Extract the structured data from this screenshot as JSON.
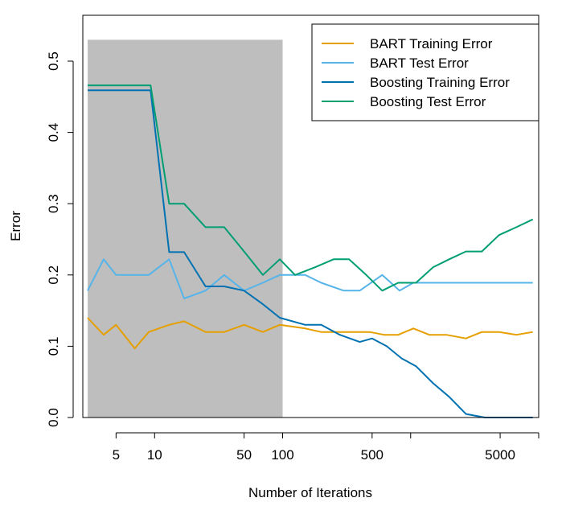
{
  "chart_data": {
    "type": "line",
    "title": "",
    "xlabel": "Number of Iterations",
    "ylabel": "Error",
    "x_scale": "log",
    "xlim": [
      2.75,
      10000
    ],
    "ylim": [
      0,
      0.53
    ],
    "grid": false,
    "legend_position": "top-right",
    "x_ticks": [
      5,
      10,
      50,
      100,
      500,
      5000
    ],
    "x_tick_labels": [
      "5",
      "10",
      "50",
      "100",
      "500",
      "5000"
    ],
    "x_minor_ticks": [
      1000,
      10000
    ],
    "y_ticks": [
      0.0,
      0.1,
      0.2,
      0.3,
      0.4,
      0.5
    ],
    "y_tick_labels": [
      "0.0",
      "0.1",
      "0.2",
      "0.3",
      "0.4",
      "0.5"
    ],
    "shaded_region": {
      "x": [
        3,
        100
      ],
      "y": [
        0,
        0.53
      ],
      "color": "#bebebe"
    },
    "series": [
      {
        "name": "BART Training Error",
        "color": "#e69f00",
        "points": [
          [
            3,
            0.14
          ],
          [
            4,
            0.116
          ],
          [
            5,
            0.13
          ],
          [
            7,
            0.097
          ],
          [
            9,
            0.12
          ],
          [
            13,
            0.13
          ],
          [
            17,
            0.135
          ],
          [
            25,
            0.12
          ],
          [
            35,
            0.12
          ],
          [
            50,
            0.13
          ],
          [
            70,
            0.12
          ],
          [
            95,
            0.13
          ],
          [
            150,
            0.125
          ],
          [
            200,
            0.12
          ],
          [
            300,
            0.12
          ],
          [
            480,
            0.12
          ],
          [
            620,
            0.116
          ],
          [
            800,
            0.116
          ],
          [
            1050,
            0.125
          ],
          [
            1400,
            0.116
          ],
          [
            1900,
            0.116
          ],
          [
            2700,
            0.111
          ],
          [
            3600,
            0.12
          ],
          [
            4900,
            0.12
          ],
          [
            6700,
            0.116
          ],
          [
            9000,
            0.12
          ]
        ]
      },
      {
        "name": "BART Test Error",
        "color": "#56b4e9",
        "points": [
          [
            3,
            0.178
          ],
          [
            4,
            0.222
          ],
          [
            5,
            0.2
          ],
          [
            7,
            0.2
          ],
          [
            9,
            0.2
          ],
          [
            13,
            0.222
          ],
          [
            17,
            0.167
          ],
          [
            25,
            0.178
          ],
          [
            35,
            0.2
          ],
          [
            50,
            0.178
          ],
          [
            70,
            0.189
          ],
          [
            95,
            0.2
          ],
          [
            150,
            0.2
          ],
          [
            200,
            0.189
          ],
          [
            300,
            0.178
          ],
          [
            400,
            0.178
          ],
          [
            600,
            0.2
          ],
          [
            820,
            0.178
          ],
          [
            1050,
            0.189
          ],
          [
            1400,
            0.189
          ],
          [
            2000,
            0.189
          ],
          [
            3000,
            0.189
          ],
          [
            4500,
            0.189
          ],
          [
            6500,
            0.189
          ],
          [
            9000,
            0.189
          ]
        ]
      },
      {
        "name": "Boosting Training Error",
        "color": "#0072b2",
        "points": [
          [
            3,
            0.459
          ],
          [
            9.3,
            0.459
          ],
          [
            13,
            0.232
          ],
          [
            17,
            0.232
          ],
          [
            25,
            0.184
          ],
          [
            35,
            0.184
          ],
          [
            50,
            0.178
          ],
          [
            70,
            0.159
          ],
          [
            95,
            0.14
          ],
          [
            150,
            0.13
          ],
          [
            200,
            0.13
          ],
          [
            280,
            0.116
          ],
          [
            400,
            0.106
          ],
          [
            500,
            0.111
          ],
          [
            650,
            0.1
          ],
          [
            850,
            0.083
          ],
          [
            1100,
            0.072
          ],
          [
            1500,
            0.048
          ],
          [
            2000,
            0.029
          ],
          [
            2700,
            0.005
          ],
          [
            3800,
            0.0
          ],
          [
            5300,
            0.0
          ],
          [
            9000,
            0.0
          ]
        ]
      },
      {
        "name": "Boosting Test Error",
        "color": "#009e73",
        "points": [
          [
            3,
            0.466
          ],
          [
            9.3,
            0.466
          ],
          [
            13,
            0.3
          ],
          [
            17,
            0.3
          ],
          [
            25,
            0.267
          ],
          [
            35,
            0.267
          ],
          [
            50,
            0.233
          ],
          [
            70,
            0.2
          ],
          [
            95,
            0.222
          ],
          [
            125,
            0.2
          ],
          [
            180,
            0.211
          ],
          [
            250,
            0.222
          ],
          [
            330,
            0.222
          ],
          [
            450,
            0.2
          ],
          [
            600,
            0.178
          ],
          [
            800,
            0.189
          ],
          [
            1100,
            0.189
          ],
          [
            1500,
            0.211
          ],
          [
            2000,
            0.222
          ],
          [
            2700,
            0.233
          ],
          [
            3600,
            0.233
          ],
          [
            4900,
            0.256
          ],
          [
            6700,
            0.267
          ],
          [
            9000,
            0.278
          ]
        ]
      }
    ]
  }
}
